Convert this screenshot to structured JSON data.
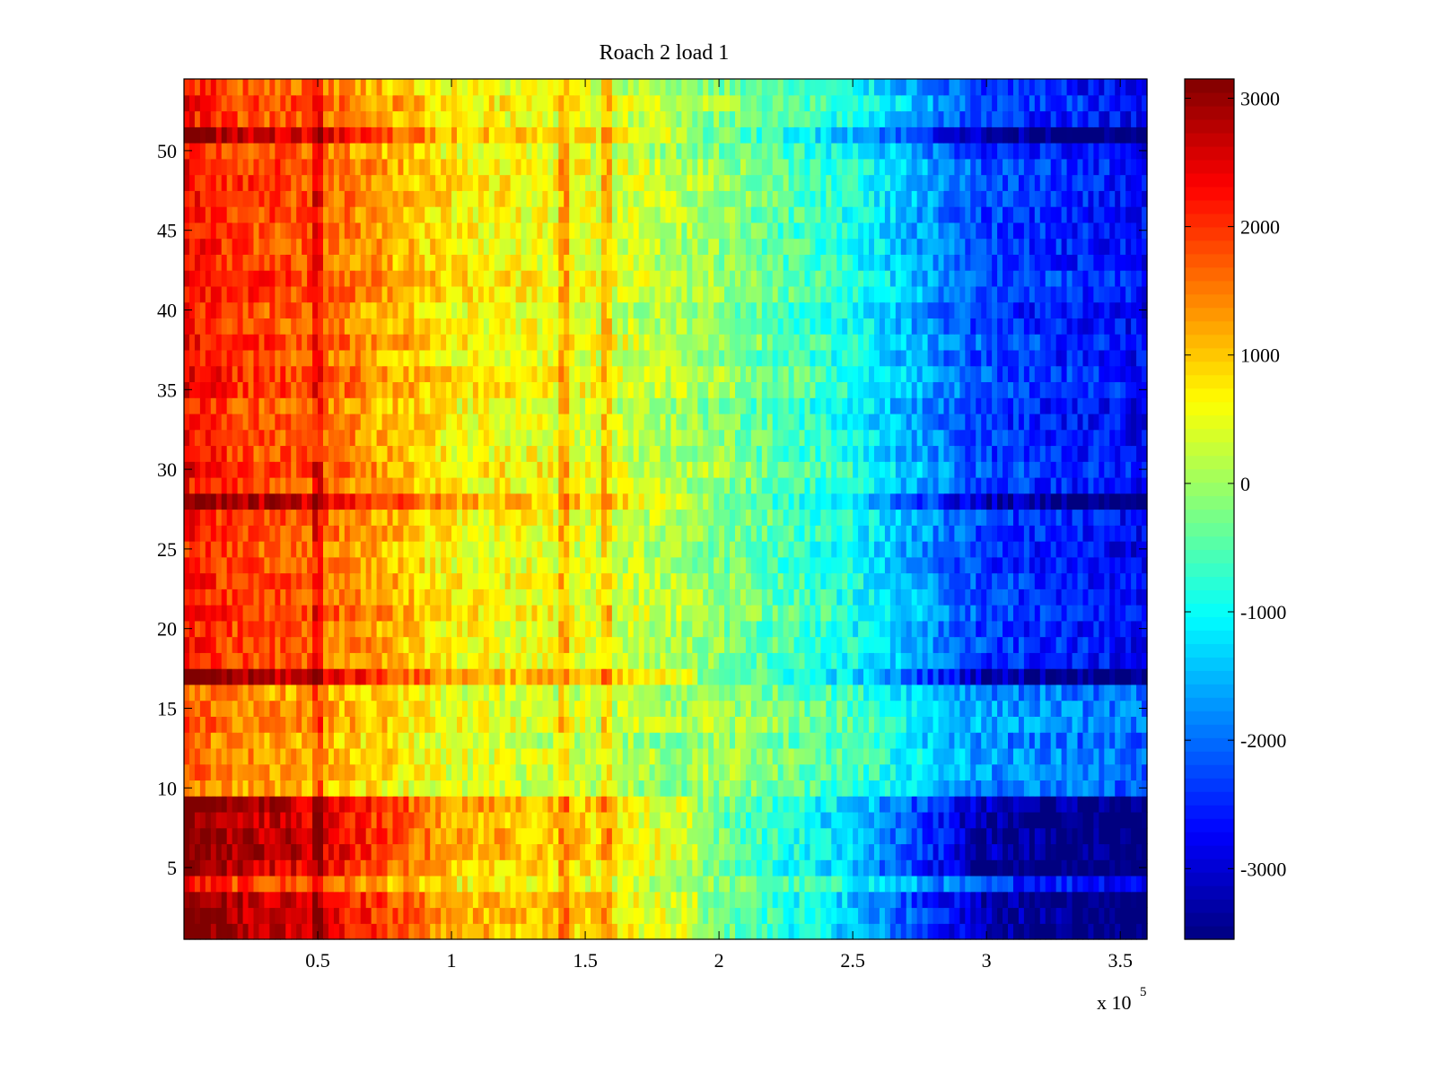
{
  "chart_data": {
    "type": "heatmap",
    "title": "Roach 2 load 1",
    "xlabel": "",
    "ylabel": "",
    "x": {
      "range": [
        0,
        360000
      ],
      "ticks": [
        50000,
        100000,
        150000,
        200000,
        250000,
        300000,
        350000
      ],
      "tick_labels": [
        "0.5",
        "1",
        "1.5",
        "2",
        "2.5",
        "3",
        "3.5"
      ],
      "exponent_label": {
        "base": "x 10",
        "power": "5"
      }
    },
    "y": {
      "range": [
        0.5,
        54.5
      ],
      "ticks": [
        5,
        10,
        15,
        20,
        25,
        30,
        35,
        40,
        45,
        50
      ],
      "tick_labels": [
        "5",
        "10",
        "15",
        "20",
        "25",
        "30",
        "35",
        "40",
        "45",
        "50"
      ],
      "rows": 54
    },
    "colorbar": {
      "colormap": "jet",
      "range": [
        -3550,
        3150
      ],
      "ticks": [
        -3000,
        -2000,
        -1000,
        0,
        1000,
        2000,
        3000
      ],
      "tick_labels": [
        "-3000",
        "-2000",
        "-1000",
        "0",
        "1000",
        "2000",
        "3000"
      ]
    },
    "value_profile": {
      "description_x": [
        0,
        20000,
        50000,
        100000,
        150000,
        200000,
        250000,
        300000,
        360000
      ],
      "approx_values": [
        2300,
        1900,
        1700,
        700,
        500,
        -100,
        -900,
        -2300,
        -2700
      ],
      "strong_rows": [
        1,
        2,
        3,
        5,
        6,
        7,
        8,
        9,
        17,
        28,
        51
      ],
      "weak_rows": [
        10,
        11,
        12,
        13,
        14,
        15,
        16
      ],
      "vertical_streaks_x": [
        50000,
        142000,
        158000
      ]
    },
    "grid": false,
    "legend": "none"
  }
}
